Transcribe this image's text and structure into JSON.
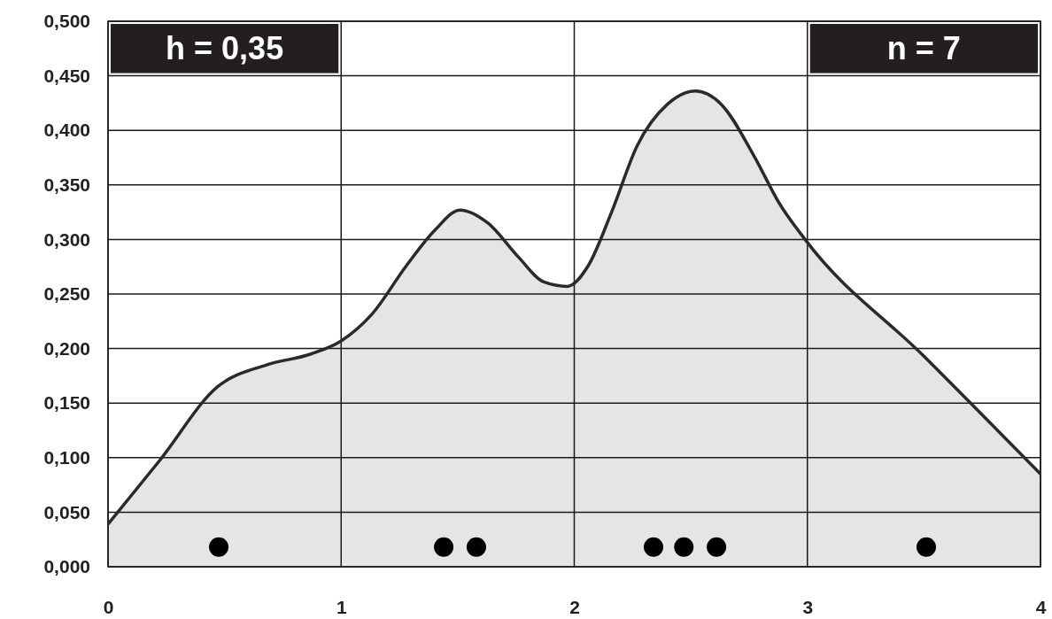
{
  "chart_data": {
    "type": "area",
    "xlim": [
      0,
      4
    ],
    "xticks": [
      0,
      1,
      2,
      3,
      4
    ],
    "ylim": [
      0,
      0.5
    ],
    "yticks": [
      {
        "value": 0,
        "label": "0,000"
      },
      {
        "value": 0.05,
        "label": "0,050"
      },
      {
        "value": 0.1,
        "label": "0,100"
      },
      {
        "value": 0.15,
        "label": "0,150"
      },
      {
        "value": 0.2,
        "label": "0,200"
      },
      {
        "value": 0.25,
        "label": "0,250"
      },
      {
        "value": 0.3,
        "label": "0,300"
      },
      {
        "value": 0.35,
        "label": "0,350"
      },
      {
        "value": 0.4,
        "label": "0,400"
      },
      {
        "value": 0.45,
        "label": "0,450"
      },
      {
        "value": 0.5,
        "label": "0,500"
      }
    ],
    "grid": true,
    "annotations": [
      "h = 0,35",
      "n = 7"
    ],
    "series": [
      {
        "color": "#2a2a2a",
        "x": [
          0,
          0.22,
          0.47,
          0.68,
          0.87,
          1.0,
          1.13,
          1.28,
          1.4,
          1.51,
          1.63,
          1.76,
          1.87,
          1.97,
          2.06,
          2.16,
          2.27,
          2.4,
          2.52,
          2.63,
          2.77,
          2.88,
          2.99,
          3.5,
          4
        ],
        "values": [
          0.039,
          0.097,
          0.165,
          0.185,
          0.195,
          0.207,
          0.231,
          0.276,
          0.308,
          0.327,
          0.315,
          0.284,
          0.261,
          0.257,
          0.276,
          0.325,
          0.386,
          0.424,
          0.436,
          0.424,
          0.377,
          0.333,
          0.3,
          0.193,
          0.085
        ]
      },
      {
        "type": "scatter",
        "color": "#000000",
        "marker": "circle",
        "x": [
          0.475,
          1.44,
          1.58,
          2.34,
          2.47,
          2.61,
          3.51
        ],
        "values": [
          0.018,
          0.018,
          0.018,
          0.018,
          0.018,
          0.018,
          0.018
        ]
      }
    ]
  }
}
